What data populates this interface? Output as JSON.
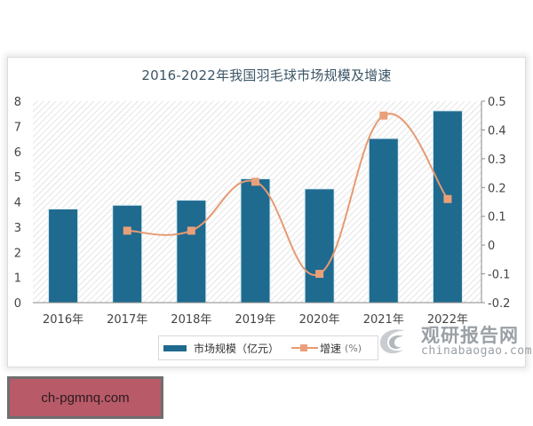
{
  "title": "2016-2022年我国羽毛球市场规模及增速",
  "chart_data": {
    "type": "bar",
    "title": "2016-2022年我国羽毛球市场规模及增速",
    "categories": [
      "2016年",
      "2017年",
      "2018年",
      "2019年",
      "2020年",
      "2021年",
      "2022年"
    ],
    "series": [
      {
        "name": "市场规模（亿元）",
        "type": "bar",
        "axis": "left",
        "color": "#1f6a8f",
        "values": [
          3.7,
          3.85,
          4.05,
          4.9,
          4.5,
          6.5,
          7.6
        ]
      },
      {
        "name": "增速（%）",
        "type": "line",
        "axis": "right",
        "color": "#e69a73",
        "values": [
          null,
          0.05,
          0.05,
          0.22,
          -0.1,
          0.45,
          0.16
        ]
      }
    ],
    "left_axis": {
      "ylim": [
        0,
        8
      ],
      "ticks": [
        "0",
        "1",
        "2",
        "3",
        "4",
        "5",
        "6",
        "7",
        "8"
      ]
    },
    "right_axis": {
      "ylim": [
        -0.2,
        0.5
      ],
      "ticks": [
        "-0.2",
        "-0.1",
        "0",
        "0.1",
        "0.2",
        "0.3",
        "0.4",
        "0.5"
      ]
    },
    "xlabel": "",
    "ylabel": "",
    "legend_position": "bottom",
    "grid": false
  },
  "legend": {
    "bar_label": "市场规模（亿元）",
    "line_label": "增速",
    "line_unit": "(%)"
  },
  "watermark": {
    "cn": "观研报告网",
    "en": "chinabaogao.com"
  },
  "site_badge": {
    "text": "ch-pgmnq.com"
  }
}
